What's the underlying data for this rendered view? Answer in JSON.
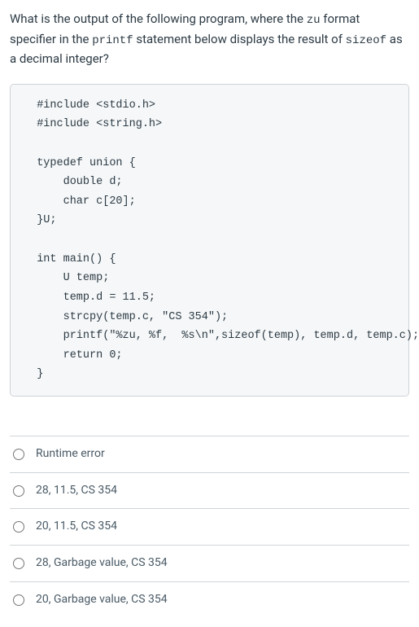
{
  "question": {
    "segments": [
      {
        "text": "What is the output of the following program, where the ",
        "code": false
      },
      {
        "text": "zu",
        "code": true
      },
      {
        "text": " format specifier in the ",
        "code": false
      },
      {
        "text": "printf",
        "code": true
      },
      {
        "text": " statement below displays the result of ",
        "code": false
      },
      {
        "text": "sizeof",
        "code": true
      },
      {
        "text": " as a decimal integer?",
        "code": false
      }
    ]
  },
  "code_block": "  #include <stdio.h>\n  #include <string.h>\n\n  typedef union {\n      double d;\n      char c[20];\n  }U;\n\n  int main() {\n      U temp;\n      temp.d = 11.5;\n      strcpy(temp.c, \"CS 354\");\n      printf(\"%zu, %f,  %s\\n\",sizeof(temp), temp.d, temp.c);\n      return 0;\n  }",
  "answers": [
    {
      "label": "Runtime error"
    },
    {
      "label": "28, 11.5, CS 354"
    },
    {
      "label": "20, 11.5, CS 354"
    },
    {
      "label": "28, Garbage value, CS 354"
    },
    {
      "label": "20, Garbage value, CS 354"
    }
  ],
  "styles": {
    "body_bg": "#ffffff",
    "text_color": "#2d3b45",
    "muted_text_color": "#495a66",
    "border_color": "#d0d4d8",
    "code_bg": "#f5f7f8",
    "code_font": "Menlo, Monaco, Courier New, monospace",
    "body_font": "-apple-system, BlinkMacSystemFont, Segoe UI, Roboto, Helvetica, Arial, sans-serif",
    "body_font_size": 15,
    "code_font_size": 13.5,
    "answer_font_size": 14
  }
}
